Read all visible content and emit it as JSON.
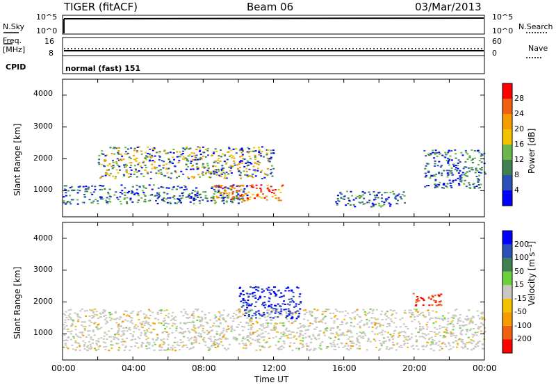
{
  "header": {
    "station": "TIGER (fitACF)",
    "beam": "Beam 06",
    "date": "03/Mar/2013"
  },
  "panels": {
    "nsky_label": "N.Sky",
    "nsky_ticks": [
      "10^5",
      "10^0"
    ],
    "nsearch_label": "N.Search",
    "nsearch_ticks": [
      "10^5",
      "10^0"
    ],
    "freq_label_1": "Freq.",
    "freq_label_2": "[MHz]",
    "freq_ticks": [
      "16",
      "8"
    ],
    "nave_label": "Nave",
    "nave_ticks": [
      "60",
      "0"
    ],
    "cpid_label": "CPID",
    "cpid_value": "normal (fast) 151"
  },
  "colors": {
    "power_scale": [
      "#0000ff",
      "#2a4fb6",
      "#3f7f50",
      "#6ab84a",
      "#f2c200",
      "#f59b00",
      "#f06010",
      "#ff0000"
    ],
    "velocity_scale": [
      "#0000ff",
      "#2a4fb6",
      "#3f7f50",
      "#6ad13a",
      "#c8c8c0",
      "#f2c200",
      "#f59b00",
      "#f06010",
      "#ff0000"
    ],
    "ground_scatter": "#c8c8c0"
  },
  "chart_data": [
    {
      "type": "heatmap",
      "title": "",
      "quantity": "Power",
      "xlabel": "Time UT",
      "ylabel": "Slant Range [km]",
      "xlim": [
        "00:00",
        "24:00"
      ],
      "ylim": [
        180,
        4500
      ],
      "x_ticks": [
        "00:00",
        "04:00",
        "08:00",
        "12:00",
        "16:00",
        "20:00",
        "00:00"
      ],
      "y_ticks": [
        1000,
        2000,
        3000,
        4000
      ],
      "colorbar": {
        "label": "Power [dB]",
        "ticks": [
          4,
          8,
          12,
          16,
          20,
          24,
          28
        ],
        "range": [
          0,
          30
        ]
      },
      "regions": [
        {
          "name": "low range band",
          "t_start": 0.0,
          "t_end": 10.5,
          "range_min": 600,
          "range_max": 1200,
          "level": "8-16"
        },
        {
          "name": "mid range arc",
          "t_start": 2.0,
          "t_end": 12.0,
          "range_min": 1400,
          "range_max": 2400,
          "level": "8-24"
        },
        {
          "name": "core echo",
          "t_start": 8.5,
          "t_end": 12.5,
          "range_min": 700,
          "range_max": 1200,
          "level": "20-30"
        },
        {
          "name": "afternoon band",
          "t_start": 15.5,
          "t_end": 19.5,
          "range_min": 500,
          "range_max": 1000,
          "level": "8-20"
        },
        {
          "name": "evening arc",
          "t_start": 20.5,
          "t_end": 24.0,
          "range_min": 1100,
          "range_max": 2300,
          "level": "8-20"
        }
      ]
    },
    {
      "type": "heatmap",
      "title": "",
      "quantity": "Velocity",
      "xlabel": "Time UT",
      "ylabel": "Slant Range [km]",
      "xlim": [
        "00:00",
        "24:00"
      ],
      "ylim": [
        180,
        4500
      ],
      "x_ticks": [
        "00:00",
        "04:00",
        "08:00",
        "12:00",
        "16:00",
        "20:00",
        "00:00"
      ],
      "y_ticks": [
        1000,
        2000,
        3000,
        4000
      ],
      "colorbar": {
        "label": "Velocity [m s⁻¹]",
        "ticks": [
          "200",
          "100",
          "50",
          "15",
          "-15",
          "-50",
          "-100",
          "-200"
        ],
        "range": [
          -250,
          250
        ]
      },
      "regions": [
        {
          "name": "ground scatter",
          "t_start": 0.0,
          "t_end": 24.0,
          "range_min": 500,
          "range_max": 1800,
          "velocity": "-15 to 15"
        },
        {
          "name": "positive flow",
          "t_start": 10.0,
          "t_end": 13.5,
          "range_min": 1500,
          "range_max": 2500,
          "velocity": "100-250"
        },
        {
          "name": "negative flow",
          "t_start": 19.8,
          "t_end": 21.5,
          "range_min": 1900,
          "range_max": 2300,
          "velocity": "-200 to -250"
        }
      ]
    }
  ]
}
